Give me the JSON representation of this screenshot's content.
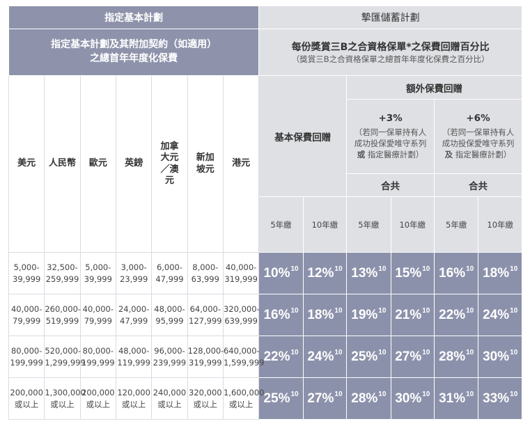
{
  "header": {
    "left_title": "指定基本計劃",
    "right_title": "摯匯儲蓄計劃",
    "left_sub_line1": "指定基本計劃及其附加契約（如適用）",
    "left_sub_line2": "之總首年年度化保費",
    "right_sub_main": "每份獎賞三B之合資格保單*之保費回贈百分比",
    "right_sub_note": "（獎賞三B之合資格保單之總首年年度化保費之百分比）"
  },
  "currencies": [
    "美元",
    "人民幣",
    "歐元",
    "英鎊",
    "加拿大元／澳元",
    "新加坡元",
    "港元"
  ],
  "rebate": {
    "basic_label": "基本保費回贈",
    "extra_label": "額外保費回贈",
    "plus3": {
      "title": "+3%",
      "line1": "（若同一保單持有人",
      "line2": "成功投保愛唯守系列",
      "line3_bold": "或",
      "line3_rest": " 指定醫療計劃）",
      "total": "合共"
    },
    "plus6": {
      "title": "+6%",
      "line1": "（若同一保單持有人",
      "line2": "成功投保愛唯守系列",
      "line3_bold": "及",
      "line3_rest": " 指定醫療計劃）",
      "total": "合共"
    },
    "terms": [
      "5年繳",
      "10年繳",
      "5年繳",
      "10年繳",
      "5年繳",
      "10年繳"
    ]
  },
  "rows": [
    {
      "ranges": [
        [
          "5,000-",
          "39,999"
        ],
        [
          "32,500-",
          "259,999"
        ],
        [
          "5,000-",
          "39,999"
        ],
        [
          "3,000-",
          "23,999"
        ],
        [
          "6,000-",
          "47,999"
        ],
        [
          "8,000-",
          "63,999"
        ],
        [
          "40,000-",
          "319,999"
        ]
      ],
      "rates": [
        "10%",
        "12%",
        "13%",
        "15%",
        "16%",
        "18%"
      ]
    },
    {
      "ranges": [
        [
          "40,000-",
          "79,999"
        ],
        [
          "260,000-",
          "519,999"
        ],
        [
          "40,000-",
          "79,999"
        ],
        [
          "24,000-",
          "47,999"
        ],
        [
          "48,000-",
          "95,999"
        ],
        [
          "64,000-",
          "127,999"
        ],
        [
          "320,000-",
          "639,999"
        ]
      ],
      "rates": [
        "16%",
        "18%",
        "19%",
        "21%",
        "22%",
        "24%"
      ]
    },
    {
      "ranges": [
        [
          "80,000-",
          "199,999"
        ],
        [
          "520,000-",
          "1,299,999"
        ],
        [
          "80,000-",
          "199,999"
        ],
        [
          "48,000-",
          "119,999"
        ],
        [
          "96,000-",
          "239,999"
        ],
        [
          "128,000-",
          "319,999"
        ],
        [
          "640,000-",
          "1,599,999"
        ]
      ],
      "rates": [
        "22%",
        "24%",
        "25%",
        "27%",
        "28%",
        "30%"
      ]
    },
    {
      "ranges": [
        [
          "200,000",
          "或以上"
        ],
        [
          "1,300,000",
          "或以上"
        ],
        [
          "200,000",
          "或以上"
        ],
        [
          "120,000",
          "或以上"
        ],
        [
          "240,000",
          "或以上"
        ],
        [
          "320,000",
          "或以上"
        ],
        [
          "1,600,000",
          "或以上"
        ]
      ],
      "rates": [
        "25%",
        "27%",
        "28%",
        "30%",
        "31%",
        "33%"
      ]
    }
  ],
  "footnote_ref": "10",
  "colors": {
    "header_dark": "#8e93ab",
    "header_light": "#dfe0e4",
    "value_cell": "#8c91ab"
  }
}
